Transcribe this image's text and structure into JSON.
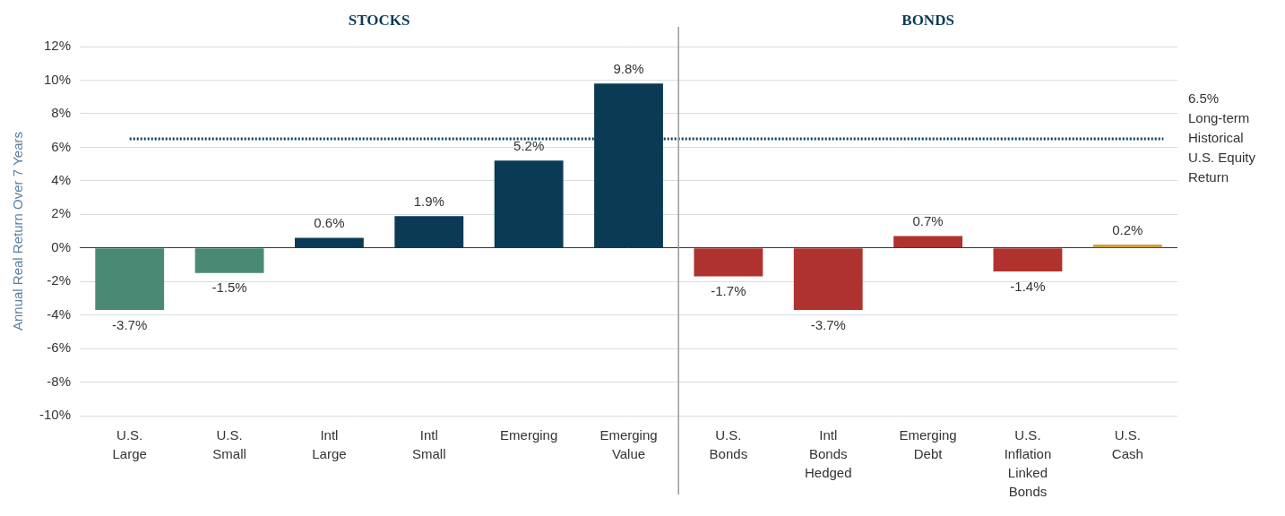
{
  "chart_data": {
    "type": "bar",
    "y_label": "Annual Real Return Over 7 Years",
    "categories": [
      [
        "U.S.",
        "Large"
      ],
      [
        "U.S.",
        "Small"
      ],
      [
        "Intl",
        "Large"
      ],
      [
        "Intl",
        "Small"
      ],
      [
        "Emerging"
      ],
      [
        "Emerging",
        "Value"
      ],
      [
        "U.S.",
        "Bonds"
      ],
      [
        "Intl",
        "Bonds",
        "Hedged"
      ],
      [
        "Emerging",
        "Debt"
      ],
      [
        "U.S.",
        "Inflation",
        "Linked",
        "Bonds"
      ],
      [
        "U.S.",
        "Cash"
      ]
    ],
    "values": [
      -3.7,
      -1.5,
      0.6,
      1.9,
      5.2,
      9.8,
      -1.7,
      -3.7,
      0.7,
      -1.4,
      0.2
    ],
    "value_labels": [
      "-3.7%",
      "-1.5%",
      "0.6%",
      "1.9%",
      "5.2%",
      "9.8%",
      "-1.7%",
      "-3.7%",
      "0.7%",
      "-1.4%",
      "0.2%"
    ],
    "colors": [
      "#4a8a74",
      "#4a8a74",
      "#0b3a55",
      "#0b3a55",
      "#0b3a55",
      "#0b3a55",
      "#b0322e",
      "#b0322e",
      "#b0322e",
      "#b0322e",
      "#d4a03a"
    ],
    "data_labels": true,
    "groups": [
      {
        "name": "STOCKS",
        "count": 6
      },
      {
        "name": "BONDS",
        "count": 5
      }
    ],
    "reference_line": {
      "value": 6.5,
      "label": [
        "6.5%",
        "Long-term",
        "Historical",
        "U.S. Equity",
        "Return"
      ],
      "line_style": "dotted",
      "color": "#0b3a55"
    },
    "ylim": [
      -10,
      12
    ],
    "yticks": [
      {
        "value": -10,
        "label": "-10%"
      },
      {
        "value": -8,
        "label": "-8%"
      },
      {
        "value": -6,
        "label": "-6%"
      },
      {
        "value": -4,
        "label": "-4%"
      },
      {
        "value": -2,
        "label": "-2%"
      },
      {
        "value": 0,
        "label": "0%"
      },
      {
        "value": 2,
        "label": "2%"
      },
      {
        "value": 4,
        "label": "4%"
      },
      {
        "value": 6,
        "label": "6%"
      },
      {
        "value": 8,
        "label": "8%"
      },
      {
        "value": 10,
        "label": "10%"
      },
      {
        "value": 12,
        "label": "12%"
      }
    ],
    "grid": true
  }
}
